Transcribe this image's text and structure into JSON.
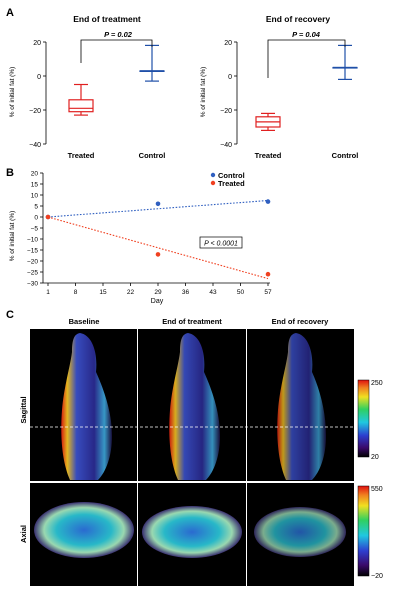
{
  "panel_a": {
    "letter": "A",
    "left": {
      "title": "End of treatment",
      "pvalue": "P = 0.02",
      "ylabel": "% of initial fat (%)",
      "yticks": [
        "20",
        "0",
        "−20",
        "−40"
      ],
      "groups": [
        "Treated",
        "Control"
      ]
    },
    "right": {
      "title": "End of recovery",
      "pvalue": "P = 0.04",
      "ylabel": "% of initial fat (%)",
      "yticks": [
        "20",
        "0",
        "−20",
        "−40"
      ],
      "groups": [
        "Treated",
        "Control"
      ]
    }
  },
  "panel_b": {
    "letter": "B",
    "ylabel": "% of initial fat (%)",
    "xlabel": "Day",
    "yticks": [
      "20",
      "15",
      "10",
      "5",
      "0",
      "−5",
      "−10",
      "−15",
      "−20",
      "−25",
      "−30"
    ],
    "xticks": [
      "1",
      "8",
      "15",
      "22",
      "29",
      "36",
      "43",
      "50",
      "57"
    ],
    "legend": [
      "Control",
      "Treated"
    ],
    "pvalue": "P < 0.0001"
  },
  "panel_c": {
    "letter": "C",
    "columns": [
      "Baseline",
      "End of treatment",
      "End of recovery"
    ],
    "rows": [
      "Sagittal",
      "Axial"
    ],
    "sagittal_scale": [
      "250",
      "20"
    ],
    "axial_scale": [
      "550",
      "−20"
    ]
  },
  "chart_data": [
    {
      "type": "box",
      "title": "End of treatment",
      "ylabel": "% of initial fat (%)",
      "ylim": [
        -40,
        20
      ],
      "categories": [
        "Treated",
        "Control"
      ],
      "boxes": [
        {
          "name": "Treated",
          "min": -23,
          "q1": -21,
          "median": -19,
          "q3": -14,
          "max": -5
        },
        {
          "name": "Control",
          "min": -3,
          "q1": 3,
          "median": 3,
          "q3": 3,
          "max": 18
        }
      ],
      "annotation": "P = 0.02",
      "colors": {
        "Treated": "#e02020",
        "Control": "#1f4fa8"
      }
    },
    {
      "type": "box",
      "title": "End of recovery",
      "ylabel": "% of initial fat (%)",
      "ylim": [
        -40,
        20
      ],
      "categories": [
        "Treated",
        "Control"
      ],
      "boxes": [
        {
          "name": "Treated",
          "min": -32,
          "q1": -30,
          "median": -27,
          "q3": -24,
          "max": -22
        },
        {
          "name": "Control",
          "min": -2,
          "q1": 5,
          "median": 5,
          "q3": 5,
          "max": 18
        }
      ],
      "annotation": "P = 0.04",
      "colors": {
        "Treated": "#e02020",
        "Control": "#1f4fa8"
      }
    },
    {
      "type": "scatter",
      "xlabel": "Day",
      "ylabel": "% of initial fat (%)",
      "xlim": [
        1,
        57
      ],
      "ylim": [
        -30,
        20
      ],
      "series": [
        {
          "name": "Control",
          "color": "#2f5fc0",
          "x": [
            1,
            29,
            57
          ],
          "y": [
            0,
            6,
            7
          ],
          "trend": [
            [
              1,
              0
            ],
            [
              57,
              7.5
            ]
          ]
        },
        {
          "name": "Treated",
          "color": "#f04020",
          "x": [
            1,
            29,
            57
          ],
          "y": [
            0,
            -17,
            -26
          ],
          "trend": [
            [
              1,
              0
            ],
            [
              57,
              -28
            ]
          ]
        }
      ],
      "annotation": "P < 0.0001"
    }
  ]
}
